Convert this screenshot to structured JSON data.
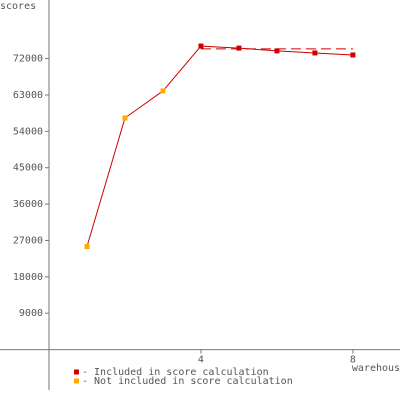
{
  "chart_data": {
    "type": "line",
    "y_label": "scores",
    "x_label": "warehouses",
    "series": [
      {
        "name": "- Included in score calculation",
        "color": "#cc0000",
        "x": [
          4,
          5,
          6,
          7,
          8
        ],
        "values": [
          75100,
          74600,
          73900,
          73400,
          72900
        ]
      },
      {
        "name": "- Not included in score calculation",
        "color": "#ffaa00",
        "x": [
          1,
          2,
          3
        ],
        "values": [
          25500,
          57300,
          64000
        ]
      }
    ],
    "line_color": "#cc0000",
    "score": 74400,
    "score_x": [
      4,
      8
    ],
    "xlim": [
      -1.29,
      9.24
    ],
    "xticks": [
      4,
      8
    ],
    "ylim": [
      -10000,
      86500
    ],
    "yticks": [
      9000,
      18000,
      27000,
      36000,
      45000,
      54000,
      63000,
      72000
    ]
  }
}
